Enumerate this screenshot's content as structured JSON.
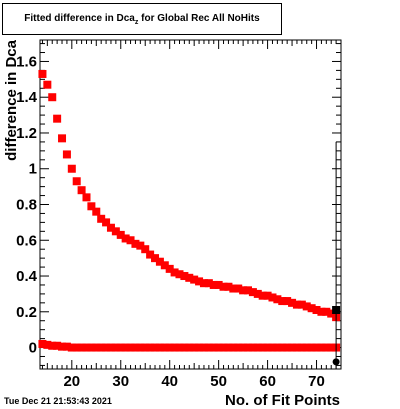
{
  "title": {
    "main": "Fitted difference in Dca",
    "subscript": "z",
    "rest": " for Global Rec All NoHits"
  },
  "timestamp": "Tue Dec 21 21:53:43 2021",
  "chart_data": {
    "type": "scatter",
    "xlabel": "No. of Fit Points",
    "ylabel": "difference in Dca",
    "xlim": [
      13.5,
      75
    ],
    "ylim": [
      -0.12,
      1.72
    ],
    "xticks": [
      20,
      30,
      40,
      50,
      60,
      70
    ],
    "yticks": [
      0,
      0.2,
      0.4,
      0.6,
      0.8,
      1,
      1.2,
      1.4,
      1.6
    ],
    "ytick_labels": [
      "0",
      "0.2",
      "0.4",
      "0.6",
      "0.8",
      "1",
      "1.2",
      "1.4",
      "1.6"
    ],
    "colors": {
      "series_red": "#ff0000",
      "series_black": "#000000"
    },
    "series": [
      {
        "marker": "square",
        "color": "#ff0000",
        "x": [
          14,
          15,
          16,
          17,
          18,
          19,
          20,
          21,
          22,
          23,
          24,
          25,
          26,
          27,
          28,
          29,
          30,
          31,
          32,
          33,
          34,
          35,
          36,
          37,
          38,
          39,
          40,
          41,
          42,
          43,
          44,
          45,
          46,
          47,
          48,
          49,
          50,
          51,
          52,
          53,
          54,
          55,
          56,
          57,
          58,
          59,
          60,
          61,
          62,
          63,
          64,
          65,
          66,
          67,
          68,
          69,
          70,
          71,
          72,
          73,
          74
        ],
        "y": [
          1.53,
          1.47,
          1.4,
          1.28,
          1.17,
          1.08,
          1.0,
          0.93,
          0.88,
          0.84,
          0.79,
          0.76,
          0.72,
          0.7,
          0.67,
          0.65,
          0.63,
          0.61,
          0.6,
          0.58,
          0.57,
          0.55,
          0.52,
          0.5,
          0.48,
          0.46,
          0.44,
          0.42,
          0.41,
          0.4,
          0.39,
          0.38,
          0.37,
          0.36,
          0.36,
          0.35,
          0.35,
          0.34,
          0.34,
          0.33,
          0.33,
          0.32,
          0.32,
          0.31,
          0.3,
          0.29,
          0.29,
          0.28,
          0.27,
          0.26,
          0.26,
          0.25,
          0.24,
          0.24,
          0.23,
          0.22,
          0.21,
          0.2,
          0.2,
          0.19,
          0.17
        ]
      },
      {
        "marker": "square",
        "color": "#ff0000",
        "x": [
          14,
          15,
          16,
          17,
          18,
          19,
          20,
          21,
          22,
          23,
          24,
          25,
          26,
          27,
          28,
          29,
          30,
          31,
          32,
          33,
          34,
          35,
          36,
          37,
          38,
          39,
          40,
          41,
          42,
          43,
          44,
          45,
          46,
          47,
          48,
          49,
          50,
          51,
          52,
          53,
          54,
          55,
          56,
          57,
          58,
          59,
          60,
          61,
          62,
          63,
          64,
          65,
          66,
          67,
          68,
          69,
          70,
          71,
          72,
          73,
          74
        ],
        "y": [
          0.02,
          0.015,
          0.01,
          0.01,
          0.005,
          0.005,
          0.0,
          0.0,
          0.0,
          0.0,
          0.0,
          0.0,
          0.0,
          0.0,
          0.0,
          0.0,
          0.0,
          0.0,
          0.0,
          0.0,
          0.0,
          0.0,
          0.0,
          0.0,
          0.0,
          0.0,
          0.0,
          0.0,
          0.0,
          0.0,
          0.0,
          0.0,
          0.0,
          0.0,
          0.0,
          0.0,
          0.0,
          0.0,
          0.0,
          0.0,
          0.0,
          0.0,
          0.0,
          0.0,
          0.0,
          0.0,
          0.0,
          0.0,
          0.0,
          0.0,
          0.0,
          0.0,
          0.0,
          0.0,
          0.0,
          0.0,
          0.0,
          0.0,
          0.0,
          0.0,
          0.0
        ]
      },
      {
        "marker": "square",
        "color": "#000000",
        "x": [
          74
        ],
        "y": [
          0.21
        ]
      },
      {
        "marker": "circle",
        "color": "#000000",
        "x": [
          74
        ],
        "y": [
          -0.08
        ]
      }
    ]
  }
}
